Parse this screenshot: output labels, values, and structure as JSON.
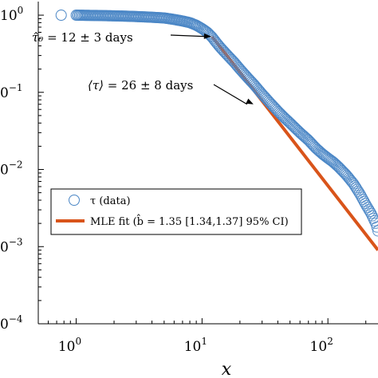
{
  "chart_data": {
    "type": "scatter",
    "xlabel": "x",
    "ylabel": "",
    "x_scale": "log",
    "y_scale": "log",
    "xlim": [
      0.5,
      250
    ],
    "ylim": [
      0.0001,
      1.5
    ],
    "x_ticks": [
      {
        "value": 1,
        "base": "10",
        "exp": "0"
      },
      {
        "value": 10,
        "base": "10",
        "exp": "1"
      },
      {
        "value": 100,
        "base": "10",
        "exp": "2"
      }
    ],
    "y_ticks": [
      {
        "value": 1,
        "base": "10",
        "exp": "0"
      },
      {
        "value": 0.1,
        "base": "0",
        "exp": "−1"
      },
      {
        "value": 0.01,
        "base": "0",
        "exp": "−2"
      },
      {
        "value": 0.001,
        "base": "0",
        "exp": "−3"
      },
      {
        "value": 0.0001,
        "base": "0",
        "exp": "−4"
      }
    ],
    "grid": false,
    "legend_placement": "lower-left",
    "series": [
      {
        "name": "τ (data)",
        "kind": "markers",
        "color": "#4a86c5",
        "x": [
          0.76,
          1.0,
          1.2,
          1.5,
          2.0,
          2.5,
          3.0,
          4.0,
          5.0,
          6.0,
          7.0,
          8.0,
          9.0,
          10.0,
          11.0,
          12.0,
          13.0,
          14.0,
          16.0,
          18.0,
          20.0,
          23.0,
          26.0,
          30.0,
          35.0,
          40.0,
          45.0,
          50.0,
          60.0,
          70.0,
          80.0,
          90.0,
          100.0,
          110.0,
          120.0,
          140.0,
          160.0,
          180.0,
          200.0,
          220.0,
          240.0,
          250.0
        ],
        "y": [
          1.0,
          1.0,
          0.995,
          0.99,
          0.98,
          0.97,
          0.96,
          0.94,
          0.92,
          0.88,
          0.84,
          0.8,
          0.74,
          0.67,
          0.6,
          0.52,
          0.44,
          0.38,
          0.3,
          0.245,
          0.2,
          0.155,
          0.125,
          0.095,
          0.072,
          0.057,
          0.047,
          0.04,
          0.03,
          0.024,
          0.019,
          0.016,
          0.014,
          0.0125,
          0.011,
          0.0085,
          0.0065,
          0.0048,
          0.0035,
          0.0027,
          0.002,
          0.0016
        ]
      },
      {
        "name": "MLE fit",
        "legend_label": "MLE fit (b̂ = 1.35 [1.34,1.37] 95% CI)",
        "kind": "line",
        "color": "#d9541a",
        "b_hat": 1.35,
        "ci": [
          1.34,
          1.37
        ],
        "x": [
          12.0,
          250.0
        ],
        "y": [
          0.53,
          0.0009
        ]
      }
    ],
    "annotations": [
      {
        "id": "tau0",
        "text": "τ̂₀ = 12 ± 3 days",
        "lhs": "τ̂₀",
        "rhs": " = 12 ± 3 days",
        "value": 12,
        "pm": 3,
        "unit": "days",
        "arrow_to": {
          "x": 12.0,
          "y": 0.53
        }
      },
      {
        "id": "mean-tau",
        "text": "⟨τ⟩ = 26 ± 8 days",
        "lhs": "⟨τ⟩",
        "rhs": " = 26 ± 8 days",
        "value": 26,
        "pm": 8,
        "unit": "days",
        "arrow_to": {
          "x": 26.0,
          "y": 0.07
        }
      }
    ],
    "colors": {
      "data": "#4a86c5",
      "fit": "#d9541a",
      "axes": "#000000"
    }
  }
}
